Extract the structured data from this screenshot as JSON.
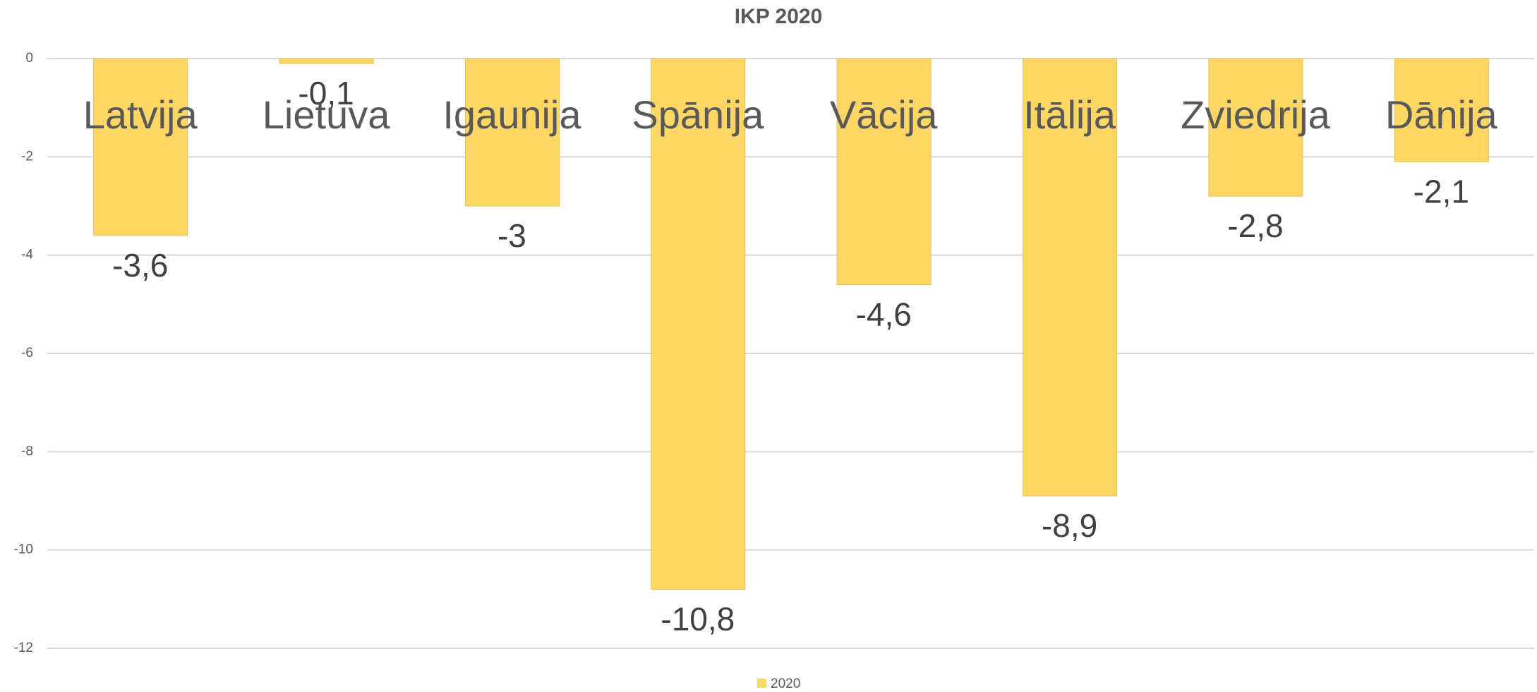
{
  "chart_data": {
    "type": "bar",
    "title": "IKP 2020",
    "categories": [
      "Latvija",
      "Lietuva",
      "Igaunija",
      "Spānija",
      "Vācija",
      "Itālija",
      "Zviedrija",
      "Dānija"
    ],
    "series": [
      {
        "name": "2020",
        "color": "#fdd663",
        "values": [
          -3.6,
          -0.1,
          -3,
          -10.8,
          -4.6,
          -8.9,
          -2.8,
          -2.1
        ],
        "value_labels": [
          "-3,6",
          "-0,1",
          "-3",
          "-10,8",
          "-4,6",
          "-8,9",
          "-2,8",
          "-2,1"
        ]
      }
    ],
    "ylim": [
      -12,
      0
    ],
    "yticks": [
      0,
      -2,
      -4,
      -6,
      -8,
      -10,
      -12
    ],
    "grid": true,
    "legend": "bottom"
  }
}
